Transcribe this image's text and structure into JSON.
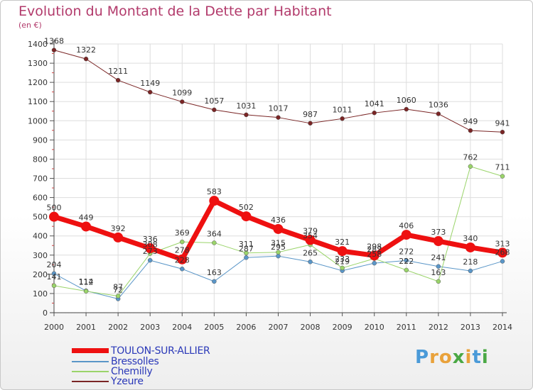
{
  "title": "Evolution du Montant de la Dette par Habitant",
  "unit": "(en €)",
  "logo": {
    "letters": [
      "P",
      "r",
      "o",
      "x",
      "i",
      "t",
      "i"
    ],
    "colors": [
      "#4a9ad8",
      "#e9a23b",
      "#e9a23b",
      "#4aa844",
      "#e9a23b",
      "#4a9ad8",
      "#4aa844"
    ]
  },
  "chart_data": {
    "type": "line",
    "categories": [
      "2000",
      "2001",
      "2002",
      "2003",
      "2004",
      "2005",
      "2006",
      "2007",
      "2008",
      "2009",
      "2010",
      "2011",
      "2012",
      "2013",
      "2014"
    ],
    "yticks": [
      "0",
      "100",
      "200",
      "300",
      "400",
      "500",
      "600",
      "700",
      "800",
      "900",
      "1000",
      "1100",
      "1200",
      "1300",
      "1400"
    ],
    "ylim": [
      0,
      1400
    ],
    "grid": true,
    "series": [
      {
        "name": "Yzeure",
        "color": "#7a2525",
        "width": 1,
        "values": [
          1368,
          1322,
          1211,
          1149,
          1099,
          1057,
          1031,
          1017,
          987,
          1011,
          1041,
          1060,
          1036,
          949,
          941
        ]
      },
      {
        "name": "Bressolles",
        "color": "#5a96c8",
        "width": 1,
        "values": [
          204,
          114,
          72,
          273,
          228,
          163,
          287,
          295,
          265,
          219,
          258,
          272,
          241,
          218,
          268
        ]
      },
      {
        "name": "Chemilly",
        "color": "#9ad46a",
        "width": 1,
        "values": [
          141,
          112,
          87,
          308,
          369,
          364,
          311,
          315,
          354,
          233,
          282,
          222,
          163,
          762,
          711
        ]
      },
      {
        "name": "TOULON-SUR-ALLIER",
        "color": "#ee1010",
        "width": 7,
        "values": [
          500,
          449,
          392,
          336,
          278,
          583,
          502,
          436,
          379,
          321,
          298,
          406,
          373,
          340,
          313
        ]
      }
    ],
    "legend_order": [
      "TOULON-SUR-ALLIER",
      "Bressolles",
      "Chemilly",
      "Yzeure"
    ],
    "legend_position": "bottom-left"
  }
}
